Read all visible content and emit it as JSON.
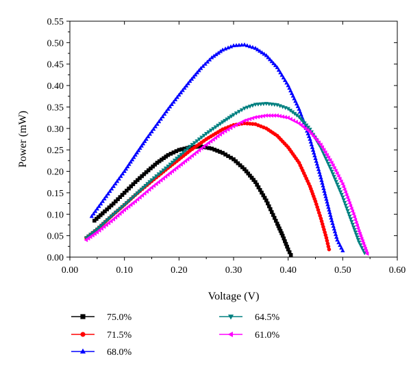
{
  "chart_data": {
    "type": "line",
    "title": "",
    "xlabel": "Voltage (V)",
    "ylabel": "Power (mW)",
    "xlim": [
      0.0,
      0.6
    ],
    "ylim": [
      0.0,
      0.55
    ],
    "x_ticks": [
      "0.00",
      "0.10",
      "0.20",
      "0.30",
      "0.40",
      "0.50",
      "0.60"
    ],
    "y_ticks": [
      "0.00",
      "0.05",
      "0.10",
      "0.15",
      "0.20",
      "0.25",
      "0.30",
      "0.35",
      "0.40",
      "0.45",
      "0.50",
      "0.55"
    ],
    "grid": false,
    "legend_position": "bottom",
    "series": [
      {
        "name": "75.0%",
        "color": "#000000",
        "marker": "square",
        "x": [
          0.045,
          0.06,
          0.08,
          0.1,
          0.12,
          0.14,
          0.16,
          0.18,
          0.2,
          0.22,
          0.24,
          0.26,
          0.28,
          0.3,
          0.32,
          0.34,
          0.36,
          0.37,
          0.38,
          0.39,
          0.4,
          0.405
        ],
        "y": [
          0.085,
          0.102,
          0.125,
          0.15,
          0.175,
          0.198,
          0.22,
          0.238,
          0.25,
          0.256,
          0.258,
          0.253,
          0.243,
          0.228,
          0.205,
          0.175,
          0.132,
          0.105,
          0.078,
          0.05,
          0.018,
          0.005
        ]
      },
      {
        "name": "71.5%",
        "color": "#ff0000",
        "marker": "circle",
        "x": [
          0.03,
          0.05,
          0.08,
          0.1,
          0.12,
          0.15,
          0.18,
          0.2,
          0.22,
          0.25,
          0.28,
          0.3,
          0.32,
          0.34,
          0.36,
          0.38,
          0.4,
          0.42,
          0.44,
          0.45,
          0.46,
          0.47,
          0.475
        ],
        "y": [
          0.045,
          0.065,
          0.1,
          0.122,
          0.145,
          0.177,
          0.208,
          0.228,
          0.248,
          0.275,
          0.298,
          0.308,
          0.312,
          0.31,
          0.3,
          0.283,
          0.256,
          0.22,
          0.165,
          0.13,
          0.09,
          0.045,
          0.018
        ]
      },
      {
        "name": "68.0%",
        "color": "#0000ff",
        "marker": "triangle-up",
        "x": [
          0.04,
          0.06,
          0.08,
          0.1,
          0.12,
          0.14,
          0.16,
          0.18,
          0.2,
          0.22,
          0.24,
          0.26,
          0.28,
          0.3,
          0.32,
          0.34,
          0.36,
          0.38,
          0.4,
          0.42,
          0.44,
          0.46,
          0.47,
          0.48,
          0.49,
          0.5
        ],
        "y": [
          0.095,
          0.13,
          0.165,
          0.2,
          0.238,
          0.275,
          0.31,
          0.345,
          0.378,
          0.41,
          0.44,
          0.465,
          0.483,
          0.493,
          0.495,
          0.487,
          0.47,
          0.442,
          0.4,
          0.345,
          0.275,
          0.185,
          0.135,
          0.085,
          0.04,
          0.015
        ]
      },
      {
        "name": "64.5%",
        "color": "#008080",
        "marker": "triangle-down",
        "x": [
          0.03,
          0.05,
          0.08,
          0.1,
          0.12,
          0.15,
          0.18,
          0.2,
          0.22,
          0.25,
          0.28,
          0.3,
          0.32,
          0.34,
          0.36,
          0.38,
          0.4,
          0.42,
          0.44,
          0.46,
          0.48,
          0.5,
          0.52,
          0.53,
          0.54
        ],
        "y": [
          0.045,
          0.065,
          0.1,
          0.122,
          0.145,
          0.18,
          0.212,
          0.235,
          0.258,
          0.288,
          0.315,
          0.332,
          0.347,
          0.356,
          0.358,
          0.355,
          0.346,
          0.327,
          0.298,
          0.255,
          0.2,
          0.14,
          0.07,
          0.035,
          0.01
        ]
      },
      {
        "name": "61.0%",
        "color": "#ff00ff",
        "marker": "triangle-left",
        "x": [
          0.03,
          0.05,
          0.08,
          0.1,
          0.12,
          0.15,
          0.18,
          0.2,
          0.22,
          0.25,
          0.28,
          0.3,
          0.32,
          0.34,
          0.36,
          0.38,
          0.4,
          0.42,
          0.44,
          0.46,
          0.48,
          0.5,
          0.52,
          0.53,
          0.54,
          0.545
        ],
        "y": [
          0.04,
          0.058,
          0.088,
          0.11,
          0.13,
          0.162,
          0.192,
          0.212,
          0.232,
          0.262,
          0.29,
          0.305,
          0.318,
          0.326,
          0.33,
          0.33,
          0.325,
          0.312,
          0.292,
          0.262,
          0.22,
          0.17,
          0.1,
          0.06,
          0.025,
          0.008
        ]
      }
    ]
  }
}
